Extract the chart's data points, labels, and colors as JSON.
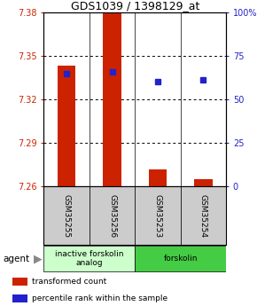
{
  "title": "GDS1039 / 1398129_at",
  "samples": [
    "GSM35255",
    "GSM35256",
    "GSM35253",
    "GSM35254"
  ],
  "bar_values": [
    7.343,
    7.38,
    7.272,
    7.265
  ],
  "bar_base": 7.26,
  "blue_values": [
    65,
    66,
    60,
    61
  ],
  "ylim_left": [
    7.26,
    7.38
  ],
  "yticks_left": [
    7.26,
    7.29,
    7.32,
    7.35,
    7.38
  ],
  "yticks_right": [
    0,
    25,
    50,
    75,
    100
  ],
  "bar_color": "#cc2200",
  "blue_color": "#2222cc",
  "groups": [
    {
      "label": "inactive forskolin\nanalog",
      "color": "#ccffcc",
      "indices": [
        0,
        1
      ]
    },
    {
      "label": "forskolin",
      "color": "#44cc44",
      "indices": [
        2,
        3
      ]
    }
  ],
  "legend_items": [
    {
      "color": "#cc2200",
      "label": "transformed count"
    },
    {
      "color": "#2222cc",
      "label": "percentile rank within the sample"
    }
  ],
  "sample_bg": "#cccccc",
  "plot_bg": "#ffffff"
}
